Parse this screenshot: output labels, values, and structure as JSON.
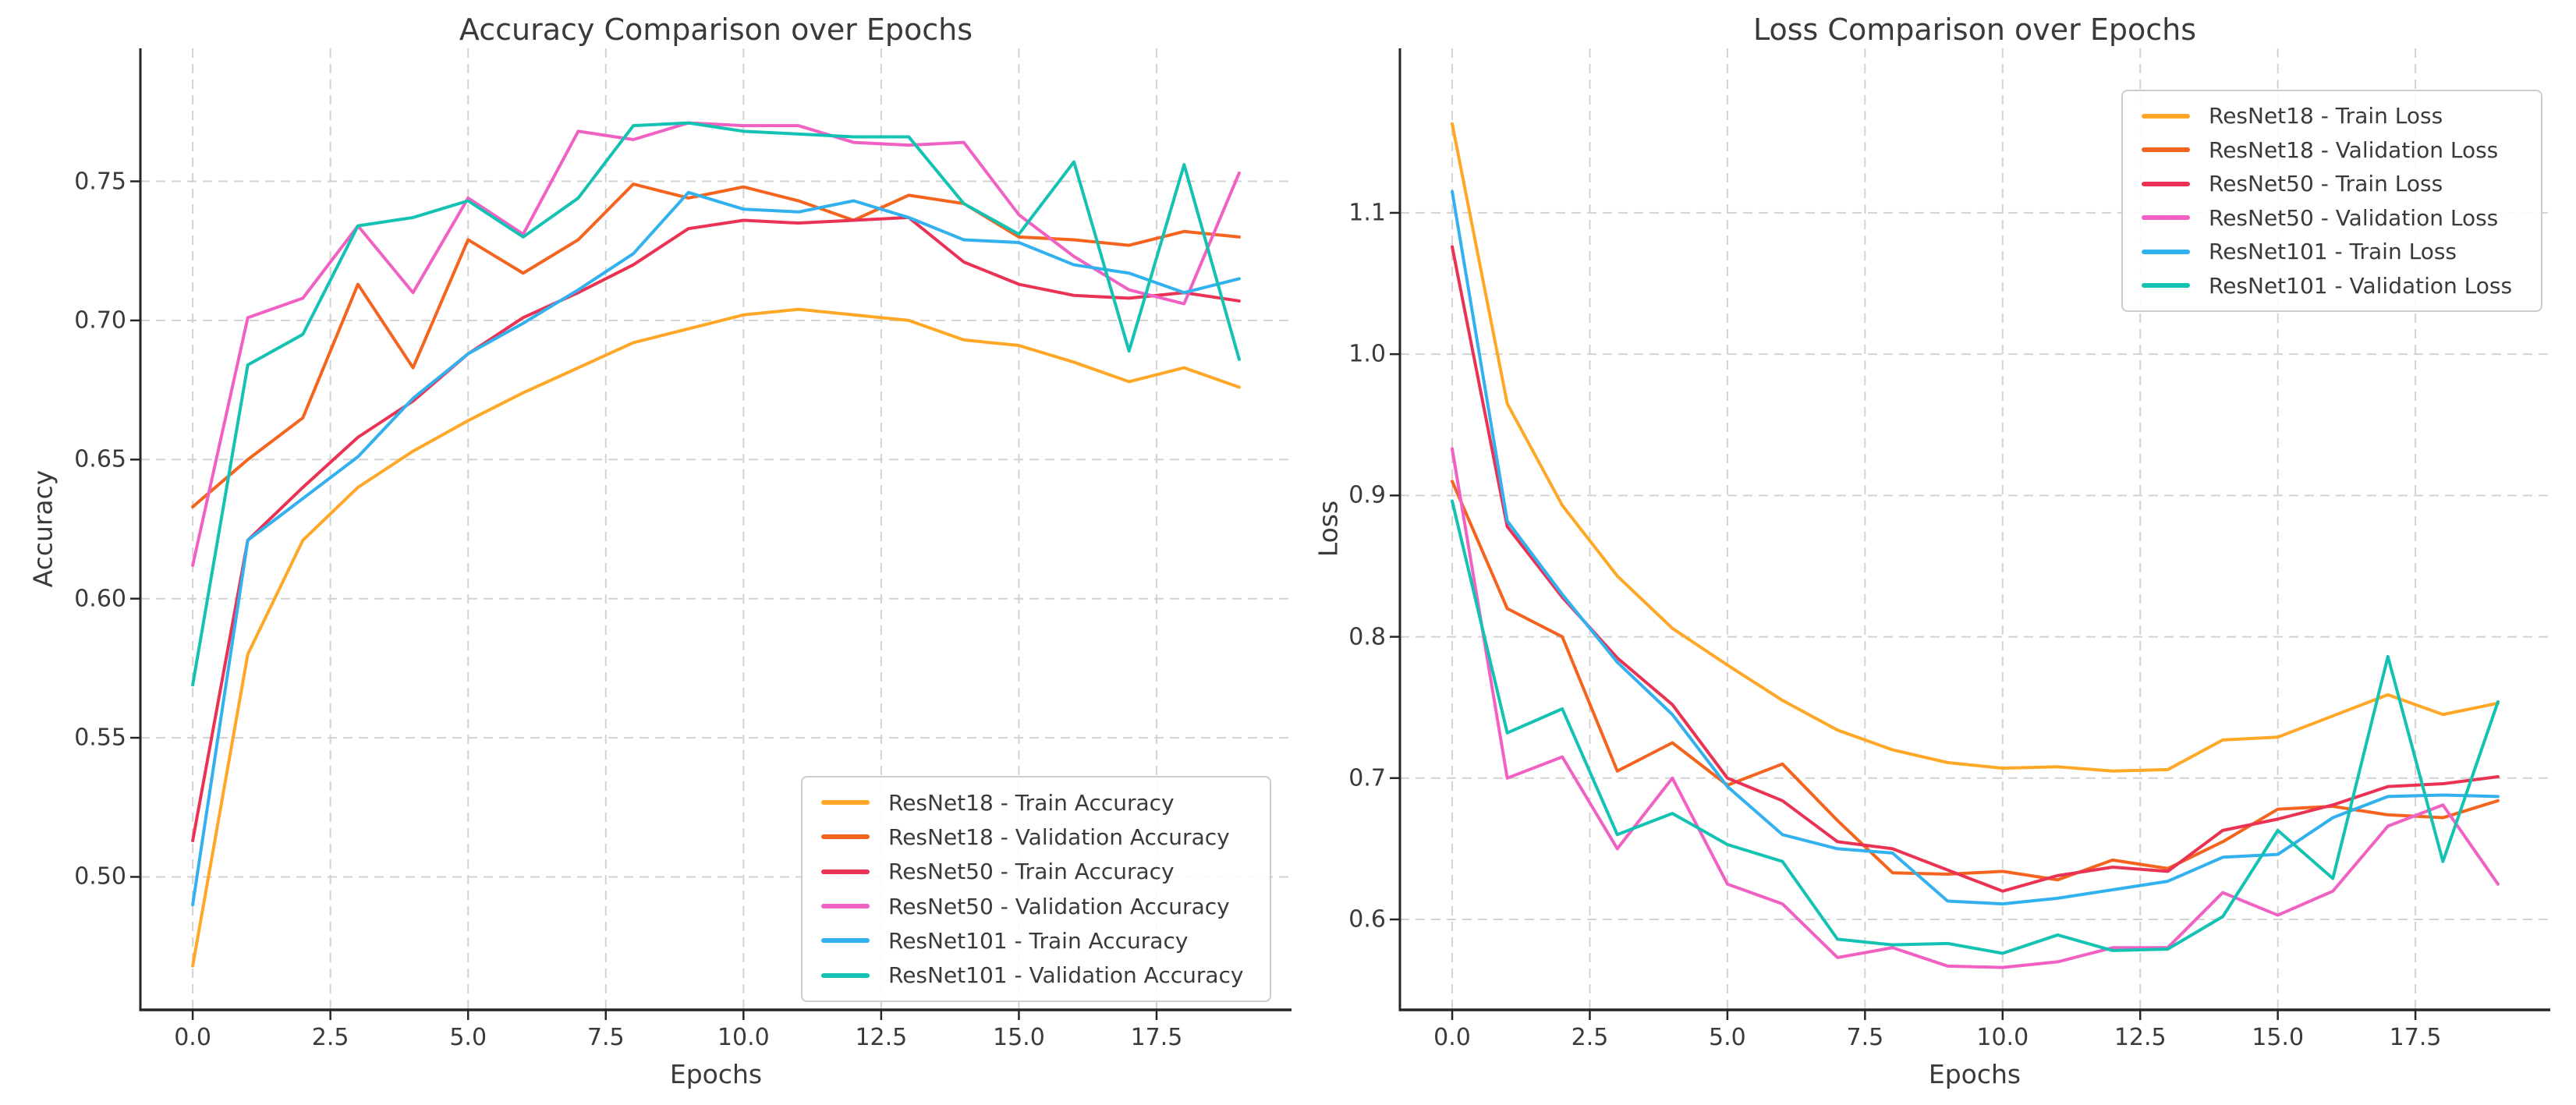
{
  "figure": {
    "background": "#ffffff",
    "text_color": "#3a3a3a",
    "spine_color": "#262626",
    "grid_color": "#d2d2d2"
  },
  "chart_data": [
    {
      "type": "line",
      "title": "Accuracy Comparison over Epochs",
      "xlabel": "Epochs",
      "ylabel": "Accuracy",
      "legend_position": "lower-right",
      "grid": true,
      "xlim": [
        -0.95,
        19.95
      ],
      "ylim": [
        0.4522,
        0.7978
      ],
      "x": [
        0,
        1,
        2,
        3,
        4,
        5,
        6,
        7,
        8,
        9,
        10,
        11,
        12,
        13,
        14,
        15,
        16,
        17,
        18,
        19
      ],
      "x_tick_values": [
        0,
        2.5,
        5,
        7.5,
        10,
        12.5,
        15,
        17.5
      ],
      "x_tick_labels": [
        "0.0",
        "2.5",
        "5.0",
        "7.5",
        "10.0",
        "12.5",
        "15.0",
        "17.5"
      ],
      "y_tick_values": [
        0.5,
        0.55,
        0.6,
        0.65,
        0.7,
        0.75
      ],
      "y_tick_labels": [
        "0.50",
        "0.55",
        "0.60",
        "0.65",
        "0.70",
        "0.75"
      ],
      "series": [
        {
          "name": "ResNet18 - Train Accuracy",
          "color": "#ffa726",
          "values": [
            0.468,
            0.58,
            0.621,
            0.64,
            0.653,
            0.664,
            0.674,
            0.683,
            0.692,
            0.697,
            0.702,
            0.704,
            0.702,
            0.7,
            0.693,
            0.691,
            0.685,
            0.678,
            0.683,
            0.676
          ]
        },
        {
          "name": "ResNet18 - Validation Accuracy",
          "color": "#f4641e",
          "values": [
            0.633,
            0.65,
            0.665,
            0.713,
            0.683,
            0.729,
            0.717,
            0.729,
            0.749,
            0.744,
            0.748,
            0.743,
            0.736,
            0.745,
            0.742,
            0.73,
            0.729,
            0.727,
            0.732,
            0.73
          ]
        },
        {
          "name": "ResNet50 - Train Accuracy",
          "color": "#ea3354",
          "values": [
            0.513,
            0.621,
            0.64,
            0.658,
            0.671,
            0.688,
            0.701,
            0.71,
            0.72,
            0.733,
            0.736,
            0.735,
            0.736,
            0.737,
            0.721,
            0.713,
            0.709,
            0.708,
            0.71,
            0.707
          ]
        },
        {
          "name": "ResNet50 - Validation Accuracy",
          "color": "#f161c4",
          "values": [
            0.612,
            0.701,
            0.708,
            0.734,
            0.71,
            0.744,
            0.731,
            0.768,
            0.765,
            0.771,
            0.77,
            0.77,
            0.764,
            0.763,
            0.764,
            0.738,
            0.723,
            0.711,
            0.706,
            0.753
          ]
        },
        {
          "name": "ResNet101 - Train Accuracy",
          "color": "#33b1ee",
          "values": [
            0.49,
            0.621,
            0.636,
            0.651,
            0.672,
            0.688,
            0.699,
            0.711,
            0.724,
            0.746,
            0.74,
            0.739,
            0.743,
            0.737,
            0.729,
            0.728,
            0.72,
            0.717,
            0.71,
            0.715
          ]
        },
        {
          "name": "ResNet101 - Validation Accuracy",
          "color": "#13c2b3",
          "values": [
            0.569,
            0.684,
            0.695,
            0.734,
            0.737,
            0.743,
            0.73,
            0.744,
            0.77,
            0.771,
            0.768,
            0.767,
            0.766,
            0.766,
            0.742,
            0.731,
            0.757,
            0.689,
            0.756,
            0.686
          ]
        }
      ]
    },
    {
      "type": "line",
      "title": "Loss Comparison over Epochs",
      "xlabel": "Epochs",
      "ylabel": "Loss",
      "legend_position": "upper-right",
      "grid": true,
      "xlim": [
        -0.95,
        19.95
      ],
      "ylim": [
        0.536,
        1.2164
      ],
      "x": [
        0,
        1,
        2,
        3,
        4,
        5,
        6,
        7,
        8,
        9,
        10,
        11,
        12,
        13,
        14,
        15,
        16,
        17,
        18,
        19
      ],
      "x_tick_values": [
        0,
        2.5,
        5,
        7.5,
        10,
        12.5,
        15,
        17.5
      ],
      "x_tick_labels": [
        "0.0",
        "2.5",
        "5.0",
        "7.5",
        "10.0",
        "12.5",
        "15.0",
        "17.5"
      ],
      "y_tick_values": [
        0.6,
        0.7,
        0.8,
        0.9,
        1.0,
        1.1
      ],
      "y_tick_labels": [
        "0.6",
        "0.7",
        "0.8",
        "0.9",
        "1.0",
        "1.1"
      ],
      "series": [
        {
          "name": "ResNet18 - Train Loss",
          "color": "#ffa726",
          "values": [
            1.163,
            0.965,
            0.893,
            0.843,
            0.806,
            0.78,
            0.755,
            0.734,
            0.72,
            0.711,
            0.707,
            0.708,
            0.705,
            0.706,
            0.727,
            0.729,
            0.744,
            0.759,
            0.745,
            0.753
          ]
        },
        {
          "name": "ResNet18 - Validation Loss",
          "color": "#f4641e",
          "values": [
            0.91,
            0.82,
            0.8,
            0.705,
            0.725,
            0.695,
            0.71,
            0.67,
            0.633,
            0.632,
            0.634,
            0.628,
            0.642,
            0.636,
            0.655,
            0.678,
            0.68,
            0.674,
            0.672,
            0.684
          ]
        },
        {
          "name": "ResNet50 - Train Loss",
          "color": "#ea3354",
          "values": [
            1.076,
            0.878,
            0.828,
            0.785,
            0.752,
            0.7,
            0.684,
            0.655,
            0.65,
            0.635,
            0.62,
            0.631,
            0.637,
            0.634,
            0.663,
            0.671,
            0.681,
            0.694,
            0.696,
            0.701
          ]
        },
        {
          "name": "ResNet50 - Validation Loss",
          "color": "#f161c4",
          "values": [
            0.933,
            0.7,
            0.715,
            0.65,
            0.7,
            0.625,
            0.611,
            0.573,
            0.58,
            0.567,
            0.566,
            0.57,
            0.58,
            0.58,
            0.619,
            0.603,
            0.62,
            0.666,
            0.681,
            0.625
          ]
        },
        {
          "name": "ResNet101 - Train Loss",
          "color": "#33b1ee",
          "values": [
            1.115,
            0.882,
            0.83,
            0.782,
            0.745,
            0.694,
            0.66,
            0.65,
            0.647,
            0.613,
            0.611,
            0.615,
            0.621,
            0.627,
            0.644,
            0.646,
            0.672,
            0.687,
            0.688,
            0.687
          ]
        },
        {
          "name": "ResNet101 - Validation Loss",
          "color": "#13c2b3",
          "values": [
            0.896,
            0.732,
            0.749,
            0.66,
            0.675,
            0.653,
            0.641,
            0.586,
            0.582,
            0.583,
            0.576,
            0.589,
            0.578,
            0.579,
            0.602,
            0.663,
            0.629,
            0.786,
            0.641,
            0.754
          ]
        }
      ]
    }
  ]
}
